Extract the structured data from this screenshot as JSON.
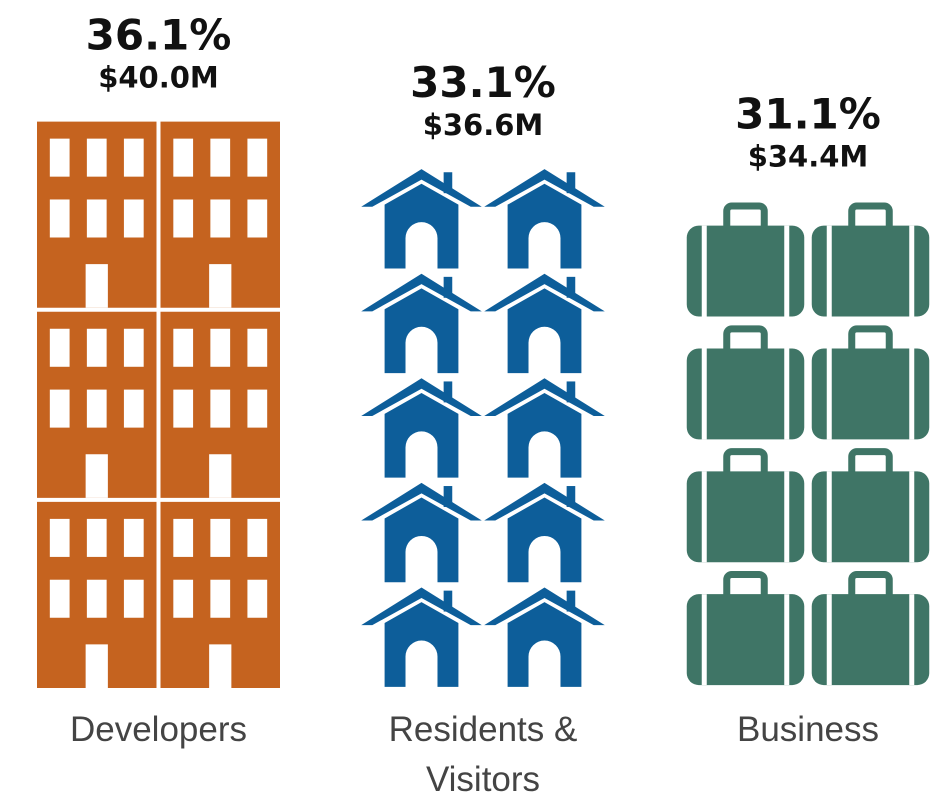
{
  "chart_data": {
    "type": "pictogram",
    "categories": [
      "Developers",
      "Residents & Visitors",
      "Business"
    ],
    "values": [
      36.1,
      33.1,
      31.1
    ],
    "value_labels": [
      "36.1%",
      "33.1%",
      "31.1%"
    ],
    "amounts": [
      40000000,
      36600000,
      34400000
    ],
    "amount_labels": [
      "$40.0M",
      "$36.6M",
      "$34.4M"
    ],
    "colors": [
      "#c5631f",
      "#0d5e9a",
      "#3f7566"
    ]
  }
}
